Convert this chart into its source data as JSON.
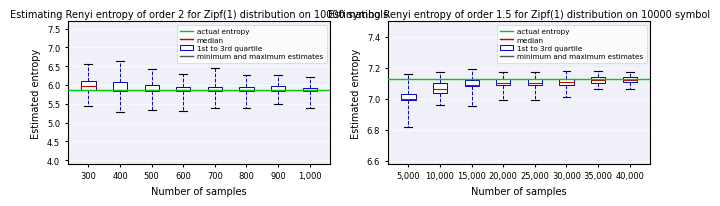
{
  "left": {
    "title": "Estimating Renyi entropy of order 2 for Zipf(1) distribution on 10000 symbols",
    "xlabel": "Number of samples",
    "ylabel": "Estimated entropy",
    "actual_entropy": 5.87,
    "xlabels": [
      "300",
      "400",
      "500",
      "600",
      "700",
      "800",
      "900",
      "1,000"
    ],
    "xvals": [
      300,
      400,
      500,
      600,
      700,
      800,
      900,
      1000
    ],
    "ylim": [
      3.9,
      7.7
    ],
    "yticks": [
      4.0,
      4.5,
      5.0,
      5.5,
      6.0,
      6.5,
      7.0,
      7.5
    ],
    "boxes": [
      {
        "q1": 5.87,
        "median": 5.97,
        "q3": 6.1,
        "whislo": 5.45,
        "whishi": 6.57
      },
      {
        "q1": 5.83,
        "median": 5.88,
        "q3": 6.07,
        "whislo": 5.27,
        "whishi": 6.65
      },
      {
        "q1": 5.83,
        "median": 5.88,
        "q3": 5.99,
        "whislo": 5.33,
        "whishi": 6.42
      },
      {
        "q1": 5.83,
        "median": 5.87,
        "q3": 5.95,
        "whislo": 5.3,
        "whishi": 6.28
      },
      {
        "q1": 5.83,
        "median": 5.87,
        "q3": 5.94,
        "whislo": 5.4,
        "whishi": 6.45
      },
      {
        "q1": 5.84,
        "median": 5.87,
        "q3": 5.95,
        "whislo": 5.4,
        "whishi": 6.27
      },
      {
        "q1": 5.85,
        "median": 5.88,
        "q3": 5.98,
        "whislo": 5.5,
        "whishi": 6.27
      },
      {
        "q1": 5.85,
        "median": 5.87,
        "q3": 5.93,
        "whislo": 5.38,
        "whishi": 6.22
      }
    ]
  },
  "right": {
    "title": "Estimating Renyi entropy of order 1.5 for Zipf(1) distribution on 10000 symbol",
    "xlabel": "Number of samples",
    "ylabel": "Estimated entropy",
    "actual_entropy": 7.13,
    "xlabels": [
      "5,000",
      "10,000",
      "15,000",
      "20,000",
      "25,000",
      "30,000",
      "35,000",
      "40,000"
    ],
    "xvals": [
      5000,
      10000,
      15000,
      20000,
      25000,
      30000,
      35000,
      40000
    ],
    "ylim": [
      6.58,
      7.5
    ],
    "yticks": [
      6.6,
      6.8,
      7.0,
      7.2,
      7.4
    ],
    "boxes": [
      {
        "q1": 6.99,
        "median": 7.0,
        "q3": 7.03,
        "whislo": 6.82,
        "whishi": 7.16
      },
      {
        "q1": 7.04,
        "median": 7.06,
        "q3": 7.1,
        "whislo": 6.96,
        "whishi": 7.17
      },
      {
        "q1": 7.08,
        "median": 7.09,
        "q3": 7.12,
        "whislo": 6.95,
        "whishi": 7.19
      },
      {
        "q1": 7.09,
        "median": 7.1,
        "q3": 7.13,
        "whislo": 6.99,
        "whishi": 7.17
      },
      {
        "q1": 7.09,
        "median": 7.1,
        "q3": 7.13,
        "whislo": 6.99,
        "whishi": 7.17
      },
      {
        "q1": 7.09,
        "median": 7.11,
        "q3": 7.13,
        "whislo": 7.01,
        "whishi": 7.18
      },
      {
        "q1": 7.1,
        "median": 7.12,
        "q3": 7.14,
        "whislo": 7.06,
        "whishi": 7.18
      },
      {
        "q1": 7.11,
        "median": 7.12,
        "q3": 7.14,
        "whislo": 7.06,
        "whishi": 7.17
      }
    ]
  },
  "box_color": "#0000cc",
  "median_color": "#cc0000",
  "actual_color": "#00cc00",
  "cap_color": "#000000",
  "legend_items": [
    "actual entropy",
    "median",
    "1st to 3rd quartile",
    "minimum and maximum estimates"
  ],
  "legend_colors": [
    "#00cc00",
    "#cc0000",
    "#0000cc",
    "#555555"
  ],
  "title_fontsize": 7.0,
  "label_fontsize": 7.0,
  "tick_fontsize": 6.0
}
